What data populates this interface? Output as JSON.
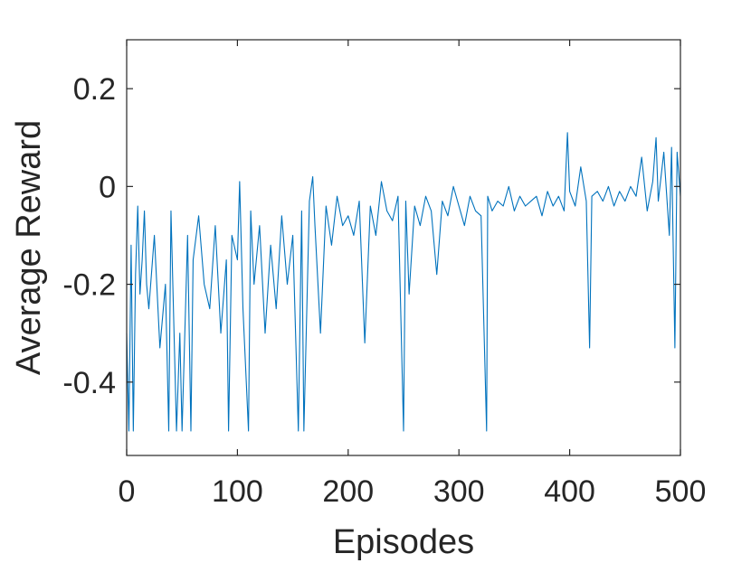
{
  "chart_data": {
    "type": "line",
    "xlabel": "Episodes",
    "ylabel": "Average Reward",
    "xlim": [
      0,
      500
    ],
    "ylim": [
      -0.55,
      0.3
    ],
    "xticks": [
      0,
      100,
      200,
      300,
      400,
      500
    ],
    "xtick_labels": [
      "0",
      "100",
      "200",
      "300",
      "400",
      "500"
    ],
    "yticks": [
      -0.4,
      -0.2,
      0,
      0.2
    ],
    "ytick_labels": [
      "-0.4",
      "-0.2",
      "0",
      "0.2"
    ],
    "grid": false,
    "box": true,
    "series": [
      {
        "color": "#0072BD",
        "x": [
          0,
          2,
          4,
          6,
          8,
          10,
          12,
          14,
          16,
          18,
          20,
          25,
          30,
          35,
          38,
          40,
          45,
          48,
          50,
          55,
          58,
          60,
          65,
          70,
          75,
          80,
          85,
          90,
          92,
          95,
          100,
          102,
          105,
          110,
          112,
          115,
          120,
          125,
          130,
          135,
          140,
          145,
          150,
          155,
          158,
          160,
          165,
          168,
          170,
          175,
          180,
          185,
          190,
          195,
          200,
          205,
          210,
          215,
          220,
          225,
          230,
          235,
          240,
          245,
          250,
          252,
          255,
          260,
          265,
          270,
          275,
          280,
          285,
          290,
          295,
          300,
          305,
          310,
          315,
          320,
          325,
          326,
          330,
          335,
          340,
          345,
          350,
          355,
          360,
          365,
          370,
          375,
          380,
          385,
          390,
          395,
          398,
          400,
          405,
          410,
          415,
          418,
          420,
          425,
          430,
          435,
          440,
          445,
          450,
          455,
          460,
          465,
          470,
          475,
          478,
          480,
          485,
          490,
          492,
          495,
          497,
          500
        ],
        "y": [
          -0.3,
          -0.5,
          -0.12,
          -0.5,
          -0.18,
          -0.04,
          -0.22,
          -0.15,
          -0.05,
          -0.2,
          -0.25,
          -0.1,
          -0.33,
          -0.2,
          -0.5,
          -0.05,
          -0.5,
          -0.3,
          -0.5,
          -0.1,
          -0.5,
          -0.15,
          -0.06,
          -0.2,
          -0.25,
          -0.08,
          -0.3,
          -0.15,
          -0.5,
          -0.1,
          -0.15,
          0.01,
          -0.25,
          -0.5,
          -0.05,
          -0.2,
          -0.08,
          -0.3,
          -0.12,
          -0.25,
          -0.06,
          -0.2,
          -0.1,
          -0.5,
          -0.05,
          -0.5,
          -0.03,
          0.02,
          -0.08,
          -0.3,
          -0.04,
          -0.12,
          -0.02,
          -0.08,
          -0.06,
          -0.1,
          -0.03,
          -0.32,
          -0.04,
          -0.1,
          0.01,
          -0.05,
          -0.07,
          -0.02,
          -0.5,
          -0.03,
          -0.22,
          -0.04,
          -0.08,
          -0.02,
          -0.05,
          -0.18,
          -0.03,
          -0.06,
          0.0,
          -0.04,
          -0.08,
          -0.02,
          -0.05,
          -0.06,
          -0.5,
          -0.02,
          -0.05,
          -0.03,
          -0.04,
          0.0,
          -0.05,
          -0.02,
          -0.04,
          -0.03,
          -0.02,
          -0.06,
          -0.01,
          -0.04,
          -0.02,
          -0.05,
          0.11,
          -0.01,
          -0.04,
          0.04,
          -0.03,
          -0.33,
          -0.02,
          -0.01,
          -0.03,
          0.0,
          -0.04,
          -0.01,
          -0.03,
          0.0,
          -0.02,
          0.06,
          -0.05,
          0.01,
          0.1,
          -0.03,
          0.07,
          -0.1,
          0.08,
          -0.33,
          0.07,
          -0.02
        ]
      }
    ]
  }
}
